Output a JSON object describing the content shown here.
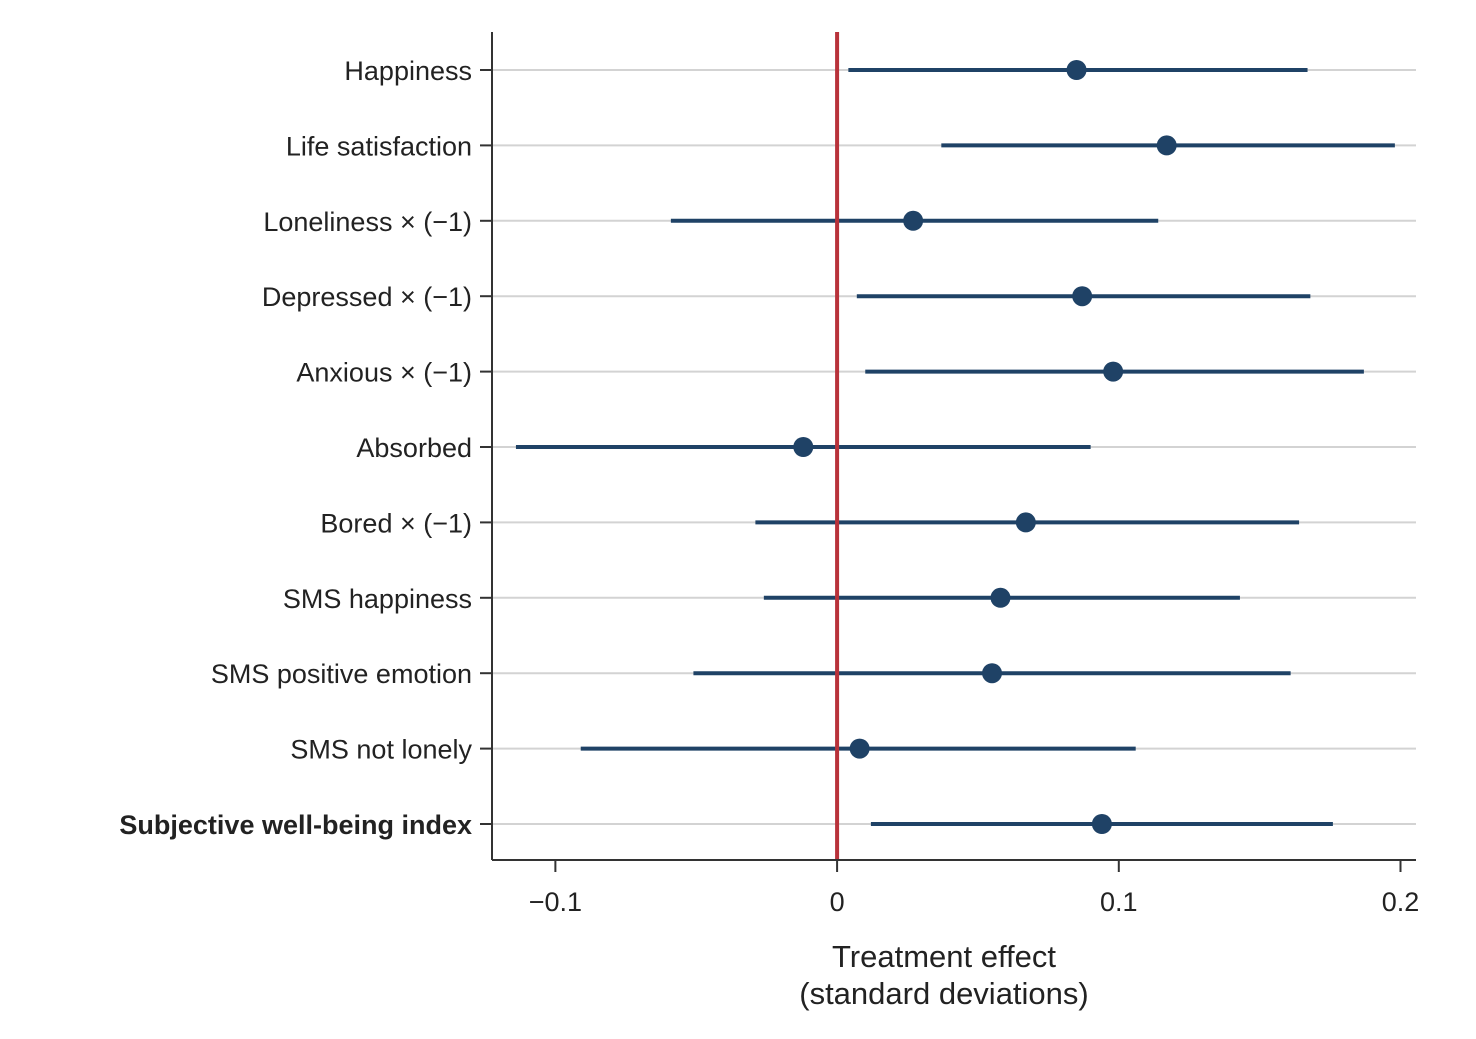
{
  "chart_data": {
    "type": "scatter",
    "subtype": "coefficient-plot",
    "title": "",
    "xlabel_lines": [
      "Treatment effect",
      "(standard deviations)"
    ],
    "ylabel": "",
    "xlim": [
      -0.1225,
      0.2055
    ],
    "xticks": [
      {
        "value": -0.1,
        "label": "−0.1"
      },
      {
        "value": 0,
        "label": "0"
      },
      {
        "value": 0.1,
        "label": "0.1"
      },
      {
        "value": 0.2,
        "label": "0.2"
      }
    ],
    "reference_line": {
      "x": 0,
      "color": "#b8323a"
    },
    "grid": "horizontal",
    "marker_color": "#1f4266",
    "grid_color": "#d3d3d3",
    "axis_color": "#333333",
    "categories": [
      {
        "label": "Happiness",
        "estimate": 0.085,
        "ci_low": 0.004,
        "ci_high": 0.167,
        "bold": false
      },
      {
        "label": "Life satisfaction",
        "estimate": 0.117,
        "ci_low": 0.037,
        "ci_high": 0.198,
        "bold": false
      },
      {
        "label": "Loneliness × (−1)",
        "estimate": 0.027,
        "ci_low": -0.059,
        "ci_high": 0.114,
        "bold": false
      },
      {
        "label": "Depressed × (−1)",
        "estimate": 0.087,
        "ci_low": 0.007,
        "ci_high": 0.168,
        "bold": false
      },
      {
        "label": "Anxious × (−1)",
        "estimate": 0.098,
        "ci_low": 0.01,
        "ci_high": 0.187,
        "bold": false
      },
      {
        "label": "Absorbed",
        "estimate": -0.012,
        "ci_low": -0.114,
        "ci_high": 0.09,
        "bold": false
      },
      {
        "label": "Bored × (−1)",
        "estimate": 0.067,
        "ci_low": -0.029,
        "ci_high": 0.164,
        "bold": false
      },
      {
        "label": "SMS happiness",
        "estimate": 0.058,
        "ci_low": -0.026,
        "ci_high": 0.143,
        "bold": false
      },
      {
        "label": "SMS positive emotion",
        "estimate": 0.055,
        "ci_low": -0.051,
        "ci_high": 0.161,
        "bold": false
      },
      {
        "label": "SMS not lonely",
        "estimate": 0.008,
        "ci_low": -0.091,
        "ci_high": 0.106,
        "bold": false
      },
      {
        "label": "Subjective well-being index",
        "estimate": 0.094,
        "ci_low": 0.012,
        "ci_high": 0.176,
        "bold": true
      }
    ]
  }
}
